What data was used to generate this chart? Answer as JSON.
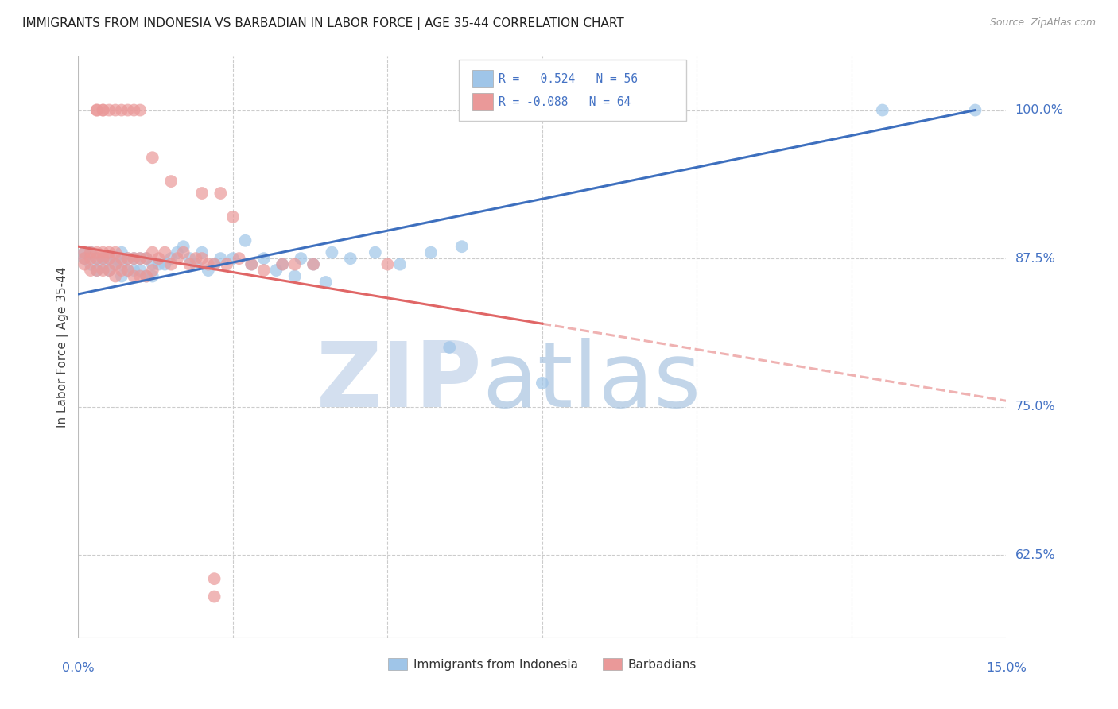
{
  "title": "IMMIGRANTS FROM INDONESIA VS BARBADIAN IN LABOR FORCE | AGE 35-44 CORRELATION CHART",
  "source": "Source: ZipAtlas.com",
  "ylabel": "In Labor Force | Age 35-44",
  "ytick_labels": [
    "100.0%",
    "87.5%",
    "75.0%",
    "62.5%"
  ],
  "ytick_vals": [
    1.0,
    0.875,
    0.75,
    0.625
  ],
  "xlim": [
    0.0,
    0.15
  ],
  "ylim": [
    0.555,
    1.045
  ],
  "r_indonesia": 0.524,
  "n_indonesia": 56,
  "r_barbadian": -0.088,
  "n_barbadian": 64,
  "blue_color": "#9fc5e8",
  "pink_color": "#ea9999",
  "blue_line_color": "#3d6fbe",
  "pink_line_color": "#e06666",
  "indo_line_x0": 0.0,
  "indo_line_y0": 0.845,
  "indo_line_x1": 0.145,
  "indo_line_y1": 1.0,
  "barb_line_x0": 0.0,
  "barb_line_y0": 0.885,
  "barb_line_x1_solid": 0.075,
  "barb_line_x1": 0.15,
  "barb_line_y1": 0.755,
  "watermark_zip_color": "#c8d8ec",
  "watermark_atlas_color": "#a8c4e0"
}
